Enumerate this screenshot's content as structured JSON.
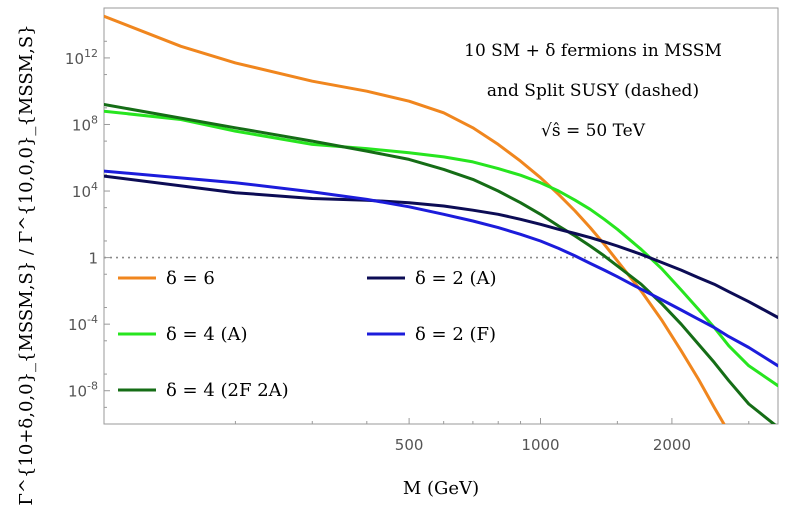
{
  "chart_data": {
    "type": "line",
    "title": "",
    "annotation_lines": [
      "10 SM + δ fermions in MSSM",
      "and Split SUSY (dashed)",
      "√ŝ = 50 TeV"
    ],
    "xlabel": "M (GeV)",
    "ylabel": "Γ^{10+δ,0,0}_{MSSM,S} / Γ^{10,0,0}_{MSSM,S}",
    "x_scale": "log",
    "y_scale": "log",
    "xlim": [
      100,
      3500
    ],
    "ylim_log10": [
      -10,
      15
    ],
    "x_ticks": [
      {
        "value": 500,
        "label": "500"
      },
      {
        "value": 1000,
        "label": "1000"
      },
      {
        "value": 2000,
        "label": "2000"
      }
    ],
    "y_ticks": [
      {
        "log10": 12,
        "base": "10",
        "exp": "12"
      },
      {
        "log10": 8,
        "base": "10",
        "exp": "8"
      },
      {
        "log10": 4,
        "base": "10",
        "exp": "4"
      },
      {
        "log10": 0,
        "base": "1",
        "exp": ""
      },
      {
        "log10": -4,
        "base": "10",
        "exp": "-4"
      },
      {
        "log10": -8,
        "base": "10",
        "exp": "-8"
      }
    ],
    "reference_line_log10": 0,
    "series": [
      {
        "name": "δ = 6",
        "color": "#f0861e",
        "x": [
          100,
          150,
          200,
          300,
          400,
          500,
          600,
          700,
          800,
          900,
          1000,
          1100,
          1200,
          1300,
          1400,
          1500,
          1700,
          1900,
          2100,
          2300,
          2500,
          2700
        ],
        "log10_y": [
          14.5,
          12.7,
          11.7,
          10.6,
          10.0,
          9.4,
          8.7,
          7.8,
          6.8,
          5.8,
          4.8,
          3.8,
          2.8,
          1.8,
          0.8,
          -0.2,
          -2.0,
          -3.8,
          -5.6,
          -7.3,
          -9.0,
          -10.5
        ]
      },
      {
        "name": "δ = 4 (A)",
        "color": "#27e51f",
        "x": [
          100,
          150,
          200,
          300,
          400,
          500,
          600,
          700,
          800,
          900,
          1000,
          1100,
          1200,
          1300,
          1400,
          1500,
          1700,
          1900,
          2100,
          2300,
          2500,
          2700,
          3000,
          3500
        ],
        "log10_y": [
          8.8,
          8.3,
          7.6,
          6.8,
          6.55,
          6.3,
          6.05,
          5.75,
          5.35,
          4.95,
          4.5,
          4.0,
          3.45,
          2.9,
          2.3,
          1.7,
          0.5,
          -0.7,
          -1.95,
          -3.1,
          -4.2,
          -5.3,
          -6.5,
          -7.7
        ]
      },
      {
        "name": "δ = 4 (2F 2A)",
        "color": "#156d16",
        "x": [
          100,
          200,
          300,
          400,
          500,
          600,
          700,
          800,
          900,
          1000,
          1100,
          1200,
          1300,
          1400,
          1500,
          1700,
          1900,
          2100,
          2300,
          2500,
          2700,
          3000,
          3500
        ],
        "log10_y": [
          9.2,
          7.8,
          7.0,
          6.4,
          5.9,
          5.3,
          4.7,
          4.0,
          3.3,
          2.6,
          1.9,
          1.3,
          0.7,
          0.1,
          -0.5,
          -1.6,
          -2.8,
          -4.0,
          -5.2,
          -6.3,
          -7.4,
          -8.8,
          -10.2
        ]
      },
      {
        "name": "δ = 2 (A)",
        "color": "#0c0c55",
        "x": [
          100,
          200,
          300,
          400,
          500,
          600,
          700,
          800,
          900,
          1000,
          1100,
          1200,
          1300,
          1400,
          1500,
          1700,
          1900,
          2100,
          2300,
          2500,
          2700,
          3000,
          3500
        ],
        "log10_y": [
          4.9,
          3.9,
          3.55,
          3.45,
          3.3,
          3.1,
          2.85,
          2.6,
          2.3,
          2.0,
          1.7,
          1.45,
          1.2,
          0.95,
          0.7,
          0.2,
          -0.3,
          -0.75,
          -1.2,
          -1.6,
          -2.05,
          -2.65,
          -3.6
        ]
      },
      {
        "name": "δ = 2 (F)",
        "color": "#1c1cdb",
        "x": [
          100,
          200,
          300,
          400,
          500,
          600,
          700,
          800,
          900,
          1000,
          1100,
          1200,
          1300,
          1400,
          1500,
          1700,
          1900,
          2100,
          2300,
          2500,
          2700,
          3000,
          3500
        ],
        "log10_y": [
          5.2,
          4.5,
          3.95,
          3.5,
          3.05,
          2.6,
          2.2,
          1.8,
          1.4,
          1.0,
          0.55,
          0.1,
          -0.35,
          -0.75,
          -1.15,
          -1.9,
          -2.55,
          -3.15,
          -3.7,
          -4.2,
          -4.75,
          -5.4,
          -6.5
        ]
      }
    ],
    "legend": [
      {
        "series": 0,
        "label": "δ = 6"
      },
      {
        "series": 3,
        "label": "δ = 2 (A)"
      },
      {
        "series": 1,
        "label": "δ = 4 (A)"
      },
      {
        "series": 4,
        "label": "δ = 2 (F)"
      },
      {
        "series": 2,
        "label": "δ = 4 (2F 2A)"
      }
    ],
    "legend_placement": "lower-left",
    "grid": false,
    "colors": {
      "frame": "#9a9a9a",
      "ticks": "#555555",
      "reference": "#8a8a8a"
    }
  }
}
